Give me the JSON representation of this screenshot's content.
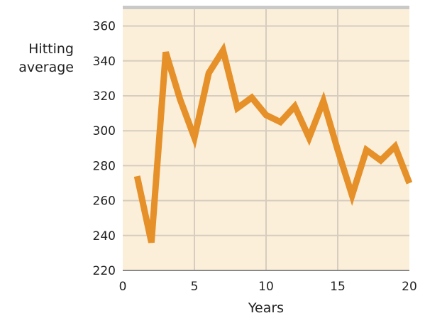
{
  "chart_data": {
    "type": "line",
    "xlabel": "Years",
    "ylabel": [
      "Hitting",
      "average"
    ],
    "xlim": [
      0,
      20
    ],
    "ylim": [
      220,
      370
    ],
    "x_ticks": [
      0,
      5,
      10,
      15,
      20
    ],
    "y_ticks": [
      220,
      240,
      260,
      280,
      300,
      320,
      340,
      360
    ],
    "grid": true,
    "series": [
      {
        "x": [
          1,
          2,
          3,
          4,
          5,
          6,
          7,
          8,
          9,
          10,
          11,
          12,
          13,
          14,
          15,
          16,
          17,
          18,
          19,
          20
        ],
        "y": [
          274,
          236,
          345,
          318,
          296,
          333,
          346,
          313,
          319,
          309,
          305,
          314,
          296,
          317,
          289,
          263,
          289,
          283,
          291,
          270
        ]
      }
    ]
  },
  "colors": {
    "plot_background": "#fcefd9",
    "gridline": "#d6cdbf",
    "top_band": "#c9c9c9",
    "axis": "#888888",
    "line": "#e6902a"
  }
}
